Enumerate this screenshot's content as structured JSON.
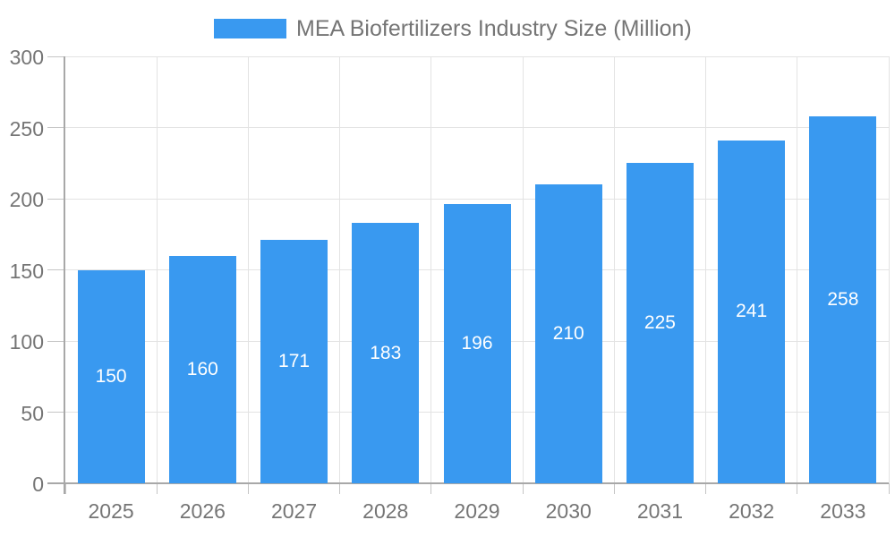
{
  "chart_data": {
    "type": "bar",
    "title": "MEA Biofertilizers Industry Size (Million)",
    "legend": {
      "label": "MEA Biofertilizers Industry Size (Million)",
      "position": "top"
    },
    "categories": [
      "2025",
      "2026",
      "2027",
      "2028",
      "2029",
      "2030",
      "2031",
      "2032",
      "2033"
    ],
    "values": [
      150,
      160,
      171,
      183,
      196,
      210,
      225,
      241,
      258
    ],
    "xlabel": "",
    "ylabel": "",
    "ylim": [
      0,
      300
    ],
    "yticks": [
      0,
      50,
      100,
      150,
      200,
      250,
      300
    ],
    "grid": true,
    "colors": {
      "bar": "#3999F0",
      "bar_label": "#FFFFFF",
      "axis_text": "#757575",
      "legend_text": "#757575",
      "axis_line": "#A8A8A8",
      "gridline": "#E3E3E3",
      "tick": "#C5C5C5",
      "background": "#FFFFFF"
    }
  }
}
